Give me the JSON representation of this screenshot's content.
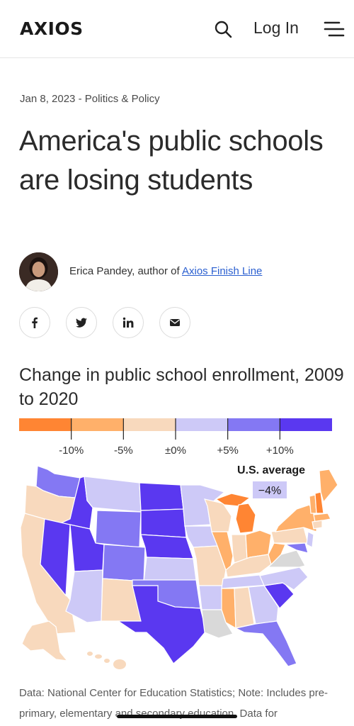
{
  "header": {
    "logo_text": "AXIOS",
    "login_label": "Log In",
    "icons": [
      "search-icon",
      "hamburger-menu-icon"
    ]
  },
  "article": {
    "date": "Jan 8, 2023",
    "separator": " - ",
    "category": "Politics & Policy",
    "headline": "America's public schools are losing students",
    "author_name": "Erica Pandey",
    "author_role": ", author of ",
    "author_newsletter": "Axios Finish Line"
  },
  "share_buttons": [
    "facebook-icon",
    "twitter-icon",
    "linkedin-icon",
    "email-icon"
  ],
  "chart_data": {
    "type": "choropleth",
    "title": "Change in public school enrollment, 2009 to 2020",
    "legend": {
      "tick_labels": [
        "-10%",
        "-5%",
        "±0%",
        "+5%",
        "+10%"
      ],
      "colors": [
        "#ff8533",
        "#ffb06a",
        "#f8d9bd",
        "#cdc9f7",
        "#8478f3",
        "#5a38f0"
      ]
    },
    "annotation": {
      "label": "U.S. average",
      "value": "−4%"
    },
    "no_data_color": "#d9d9d9"
  },
  "caption": "Data: National Center for Education Statistics; Note: Includes pre-primary, elementary and secondary education. Data for"
}
